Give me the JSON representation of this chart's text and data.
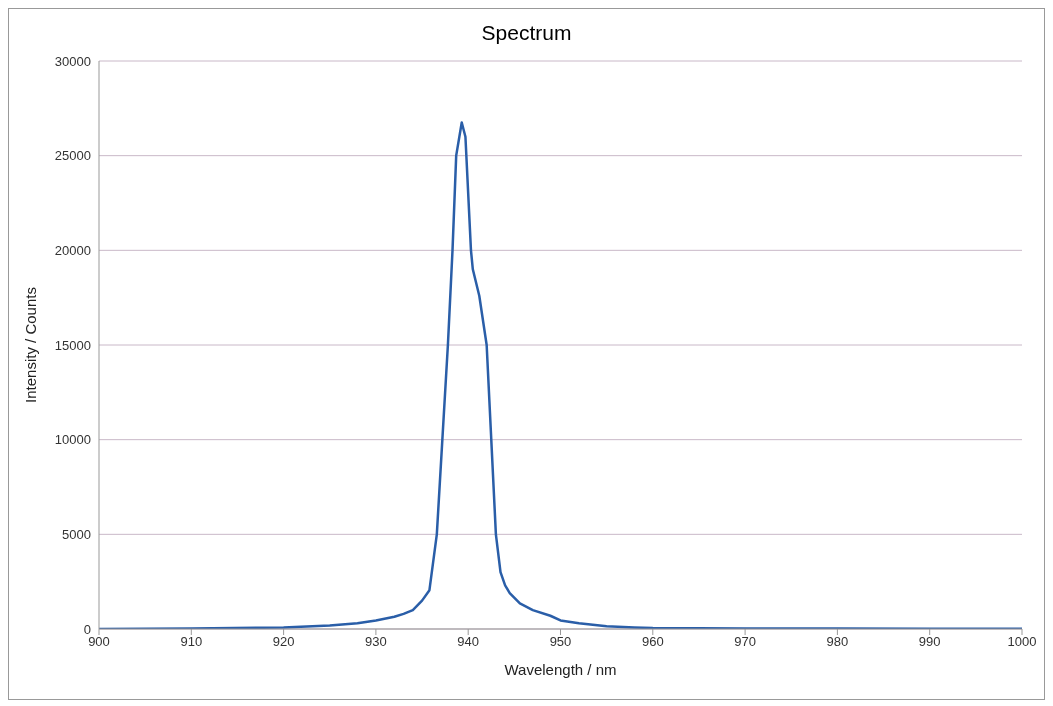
{
  "chart_data": {
    "type": "line",
    "title": "Spectrum",
    "xlabel": "Wavelength / nm",
    "ylabel": "Intensity / Counts",
    "x": [
      900,
      910,
      920,
      925,
      928,
      930,
      932,
      933,
      934,
      935,
      935.8,
      936.6,
      937.2,
      937.8,
      938.3,
      938.7,
      939.3,
      939.7,
      940.3,
      940.5,
      941.2,
      942,
      942.5,
      943,
      943.5,
      944,
      944.5,
      945.6,
      947,
      948.9,
      950,
      952,
      955,
      958,
      960,
      970,
      980,
      990,
      1000
    ],
    "series": [
      {
        "color": "#2a5ea8",
        "values": [
          0,
          20,
          80,
          180,
          300,
          450,
          650,
          800,
          1000,
          1500,
          2050,
          5000,
          10000,
          15000,
          20000,
          25000,
          26750,
          26000,
          20000,
          19000,
          17600,
          15000,
          10000,
          5000,
          3000,
          2300,
          1900,
          1350,
          1000,
          700,
          450,
          300,
          150,
          80,
          50,
          20,
          20,
          15,
          10
        ]
      }
    ],
    "xlim": [
      900,
      1000
    ],
    "xticks": [
      900,
      910,
      920,
      930,
      940,
      950,
      960,
      970,
      980,
      990,
      1000
    ],
    "ylim": [
      0,
      30000
    ],
    "yticks": [
      0,
      5000,
      10000,
      15000,
      20000,
      25000,
      30000
    ],
    "grid": "y",
    "legend": false,
    "marker": "none",
    "line_style": "solid"
  }
}
